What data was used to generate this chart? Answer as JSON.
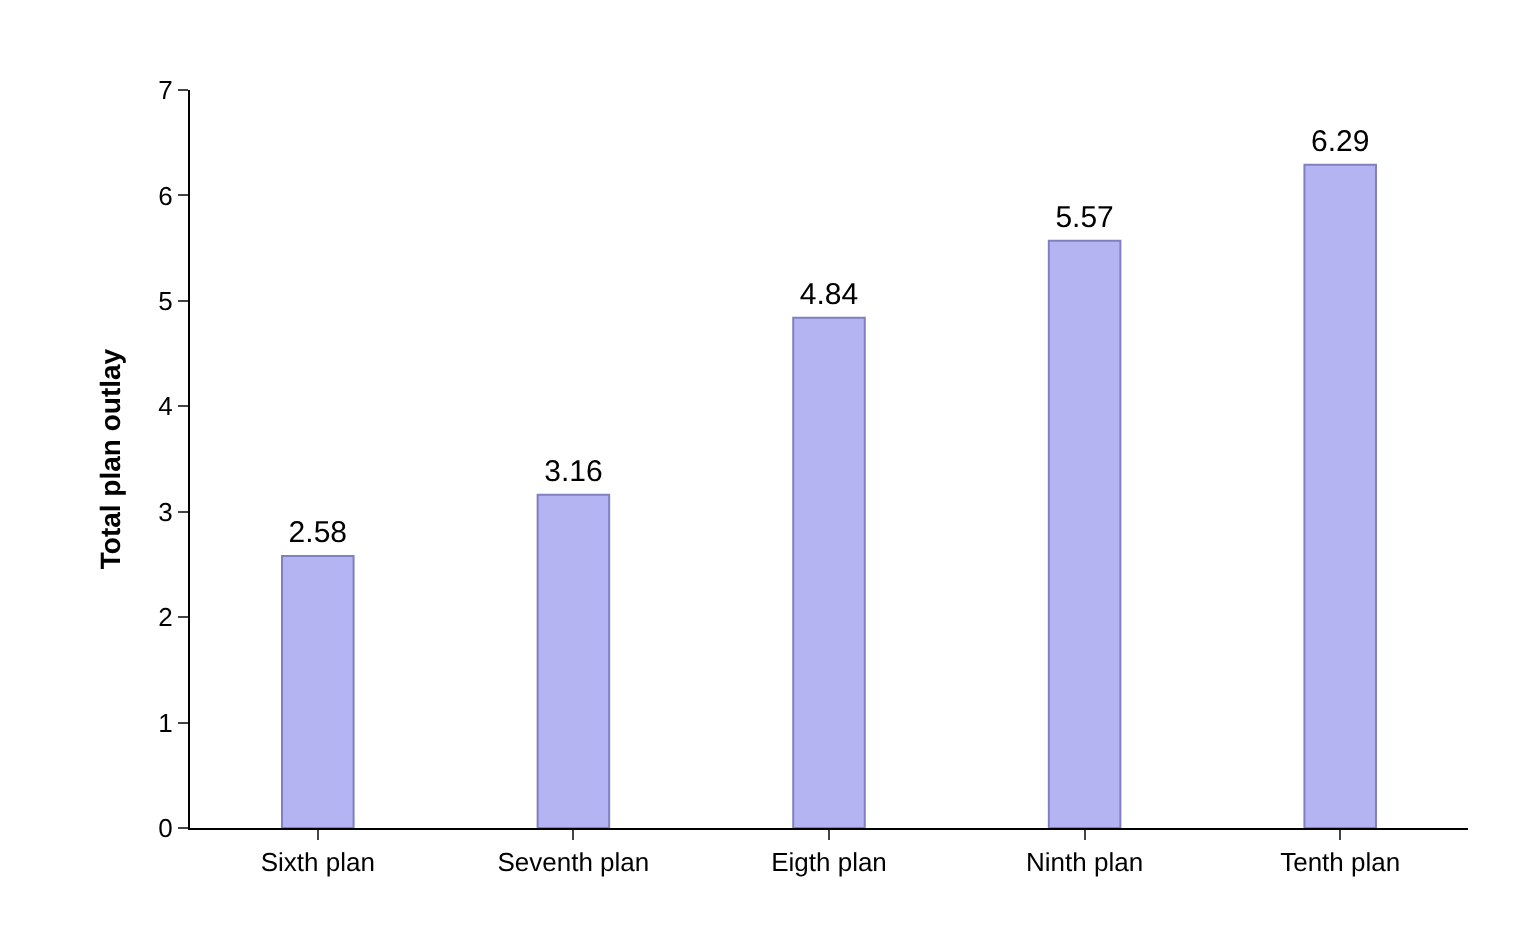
{
  "chart_data": {
    "type": "bar",
    "ylabel": "Total plan outlay",
    "categories": [
      "Sixth plan",
      "Seventh plan",
      "Eigth plan",
      "Ninth plan",
      "Tenth plan"
    ],
    "values": [
      2.58,
      3.16,
      4.84,
      5.57,
      6.29
    ],
    "color": "#b4b4f2",
    "ylim": [
      0,
      7
    ],
    "yticks": [
      0,
      1,
      2,
      3,
      4,
      5,
      6,
      7
    ],
    "grid": false,
    "data_labels": true
  }
}
